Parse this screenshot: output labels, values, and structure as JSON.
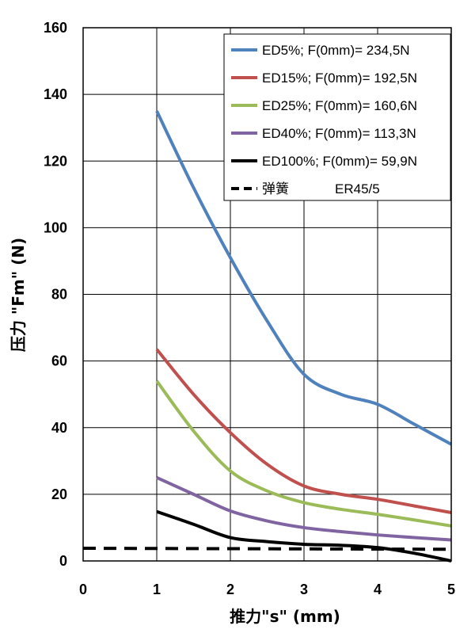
{
  "chart_data": {
    "type": "line",
    "xlabel": "推力\"s\" (mm)",
    "ylabel": "压力 \"Fm\" (N)",
    "xlim": [
      0,
      5
    ],
    "ylim": [
      0,
      160
    ],
    "xticks": [
      "0",
      "1",
      "2",
      "3",
      "4",
      "5"
    ],
    "yticks": [
      "0",
      "20",
      "40",
      "60",
      "80",
      "100",
      "120",
      "140",
      "160"
    ],
    "grid": true,
    "legend_position": "top-right",
    "series": [
      {
        "name": "ED5%; F(0mm)= 234,5N",
        "color": "#4f81bd",
        "dash": "solid",
        "points": [
          [
            1,
            135
          ],
          [
            1.5,
            112
          ],
          [
            2,
            91
          ],
          [
            2.5,
            72
          ],
          [
            3,
            56
          ],
          [
            3.5,
            50
          ],
          [
            4,
            47
          ],
          [
            4.5,
            41
          ],
          [
            5,
            35
          ]
        ]
      },
      {
        "name": "ED15%; F(0mm)= 192,5N",
        "color": "#c0504d",
        "dash": "solid",
        "points": [
          [
            1,
            63.5
          ],
          [
            1.5,
            50
          ],
          [
            2,
            38.5
          ],
          [
            2.5,
            29
          ],
          [
            3,
            22.5
          ],
          [
            3.5,
            20
          ],
          [
            4,
            18.5
          ],
          [
            4.5,
            16.5
          ],
          [
            5,
            14.5
          ]
        ]
      },
      {
        "name": "ED25%; F(0mm)= 160,6N",
        "color": "#9bbb59",
        "dash": "solid",
        "points": [
          [
            1,
            54
          ],
          [
            1.5,
            39
          ],
          [
            2,
            27
          ],
          [
            2.5,
            21
          ],
          [
            3,
            17.5
          ],
          [
            3.5,
            15.5
          ],
          [
            4,
            14
          ],
          [
            4.5,
            12.3
          ],
          [
            5,
            10.5
          ]
        ]
      },
      {
        "name": "ED40%; F(0mm)= 113,3N",
        "color": "#8064a2",
        "dash": "solid",
        "points": [
          [
            1,
            25
          ],
          [
            1.5,
            20
          ],
          [
            2,
            15
          ],
          [
            2.5,
            12
          ],
          [
            3,
            10
          ],
          [
            3.5,
            8.8
          ],
          [
            4,
            7.8
          ],
          [
            4.5,
            7
          ],
          [
            5,
            6.3
          ]
        ]
      },
      {
        "name": "ED100%; F(0mm)= 59,9N",
        "color": "#000000",
        "dash": "solid",
        "points": [
          [
            1,
            14.8
          ],
          [
            1.5,
            11
          ],
          [
            2,
            7
          ],
          [
            2.5,
            5.8
          ],
          [
            3,
            5
          ],
          [
            3.5,
            4.7
          ],
          [
            4,
            4
          ],
          [
            4.5,
            2.3
          ],
          [
            5,
            0
          ]
        ]
      },
      {
        "name": "弹簧",
        "color": "#000000",
        "dash": "dashed",
        "points": [
          [
            0,
            3.8
          ],
          [
            5,
            3.5
          ]
        ]
      }
    ],
    "annotation": "ER45/5"
  }
}
